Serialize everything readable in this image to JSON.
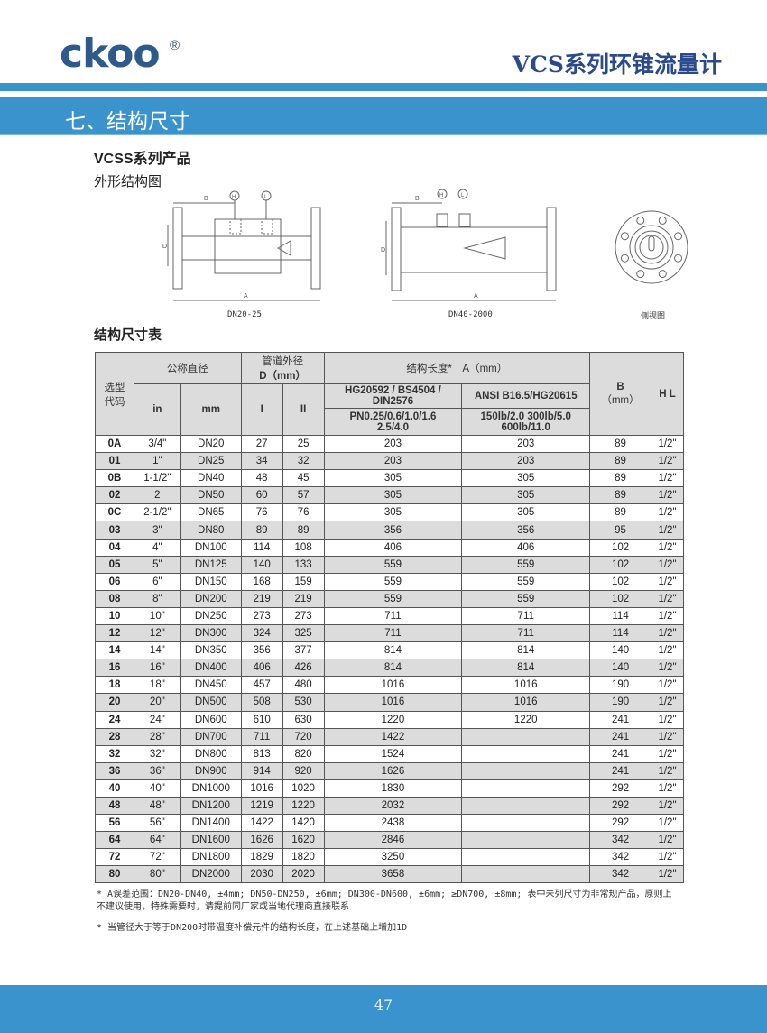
{
  "header": {
    "logo": "ckoo",
    "registered": "®",
    "title": "VCS系列环锥流量计",
    "section": "七、结构尺寸"
  },
  "product": {
    "series": "VCSS系列产品",
    "outline_heading": "外形结构图",
    "table_heading": "结构尺寸表"
  },
  "drawings": {
    "caption_small": "DN20-25",
    "caption_large": "DN40-2000",
    "caption_side": "侧视图",
    "label_a": "A",
    "label_b": "B",
    "label_d": "D",
    "port_h": "H",
    "port_l": "L"
  },
  "table": {
    "h_code": "选型代码",
    "h_nominal": "公称直径",
    "h_pipe_od": "管道外径",
    "h_pipe_od_unit": "D（mm）",
    "h_length": "结构长度*　A（mm）",
    "h_std1": "HG20592 / BS4504 / DIN2576",
    "h_std2": "ANSI B16.5/HG20615",
    "h_pn1": "PN0.25/0.6/1.0/1.6",
    "h_pn2": "2.5/4.0",
    "h_lb1": "150lb/2.0  300lb/5.0",
    "h_lb2": "600lb/11.0",
    "h_b": "B",
    "h_b_unit": "（mm）",
    "h_hl": "H L",
    "h_in": "in",
    "h_mm": "mm",
    "h_i": "I",
    "h_ii": "II",
    "rows": [
      [
        "0A",
        "3/4\"",
        "DN20",
        "27",
        "25",
        "203",
        "203",
        "89",
        "1/2\""
      ],
      [
        "01",
        "1\"",
        "DN25",
        "34",
        "32",
        "203",
        "203",
        "89",
        "1/2\""
      ],
      [
        "0B",
        "1-1/2\"",
        "DN40",
        "48",
        "45",
        "305",
        "305",
        "89",
        "1/2\""
      ],
      [
        "02",
        "2",
        "DN50",
        "60",
        "57",
        "305",
        "305",
        "89",
        "1/2\""
      ],
      [
        "0C",
        "2-1/2\"",
        "DN65",
        "76",
        "76",
        "305",
        "305",
        "89",
        "1/2\""
      ],
      [
        "03",
        "3\"",
        "DN80",
        "89",
        "89",
        "356",
        "356",
        "95",
        "1/2\""
      ],
      [
        "04",
        "4\"",
        "DN100",
        "114",
        "108",
        "406",
        "406",
        "102",
        "1/2\""
      ],
      [
        "05",
        "5\"",
        "DN125",
        "140",
        "133",
        "559",
        "559",
        "102",
        "1/2\""
      ],
      [
        "06",
        "6\"",
        "DN150",
        "168",
        "159",
        "559",
        "559",
        "102",
        "1/2\""
      ],
      [
        "08",
        "8\"",
        "DN200",
        "219",
        "219",
        "559",
        "559",
        "102",
        "1/2\""
      ],
      [
        "10",
        "10\"",
        "DN250",
        "273",
        "273",
        "711",
        "711",
        "114",
        "1/2\""
      ],
      [
        "12",
        "12\"",
        "DN300",
        "324",
        "325",
        "711",
        "711",
        "114",
        "1/2\""
      ],
      [
        "14",
        "14\"",
        "DN350",
        "356",
        "377",
        "814",
        "814",
        "140",
        "1/2\""
      ],
      [
        "16",
        "16\"",
        "DN400",
        "406",
        "426",
        "814",
        "814",
        "140",
        "1/2\""
      ],
      [
        "18",
        "18\"",
        "DN450",
        "457",
        "480",
        "1016",
        "1016",
        "190",
        "1/2\""
      ],
      [
        "20",
        "20\"",
        "DN500",
        "508",
        "530",
        "1016",
        "1016",
        "190",
        "1/2\""
      ],
      [
        "24",
        "24\"",
        "DN600",
        "610",
        "630",
        "1220",
        "1220",
        "241",
        "1/2\""
      ],
      [
        "28",
        "28\"",
        "DN700",
        "711",
        "720",
        "1422",
        "",
        "241",
        "1/2\""
      ],
      [
        "32",
        "32\"",
        "DN800",
        "813",
        "820",
        "1524",
        "",
        "241",
        "1/2\""
      ],
      [
        "36",
        "36\"",
        "DN900",
        "914",
        "920",
        "1626",
        "",
        "241",
        "1/2\""
      ],
      [
        "40",
        "40\"",
        "DN1000",
        "1016",
        "1020",
        "1830",
        "",
        "292",
        "1/2\""
      ],
      [
        "48",
        "48\"",
        "DN1200",
        "1219",
        "1220",
        "2032",
        "",
        "292",
        "1/2\""
      ],
      [
        "56",
        "56\"",
        "DN1400",
        "1422",
        "1420",
        "2438",
        "",
        "292",
        "1/2\""
      ],
      [
        "64",
        "64\"",
        "DN1600",
        "1626",
        "1620",
        "2846",
        "",
        "342",
        "1/2\""
      ],
      [
        "72",
        "72\"",
        "DN1800",
        "1829",
        "1820",
        "3250",
        "",
        "342",
        "1/2\""
      ],
      [
        "80",
        "80\"",
        "DN2000",
        "2030",
        "2020",
        "3658",
        "",
        "342",
        "1/2\""
      ]
    ]
  },
  "notes": [
    "* A误差范围：DN20-DN40, ±4mm; DN50-DN250, ±6mm; DN300-DN600, ±6mm; ≥DN700, ±8mm; 表中未列尺寸为非常规产品，原则上不建议使用，特殊需要时，请提前同厂家或当地代理商直接联系",
    "* 当管径大于等于DN200时带温度补偿元件的结构长度，在上述基础上增加1D"
  ],
  "footer": {
    "page": "47"
  },
  "colors": {
    "brand_blue": "#3a93cc",
    "logo": "#2d5a8a",
    "title": "#2b4a8c"
  }
}
